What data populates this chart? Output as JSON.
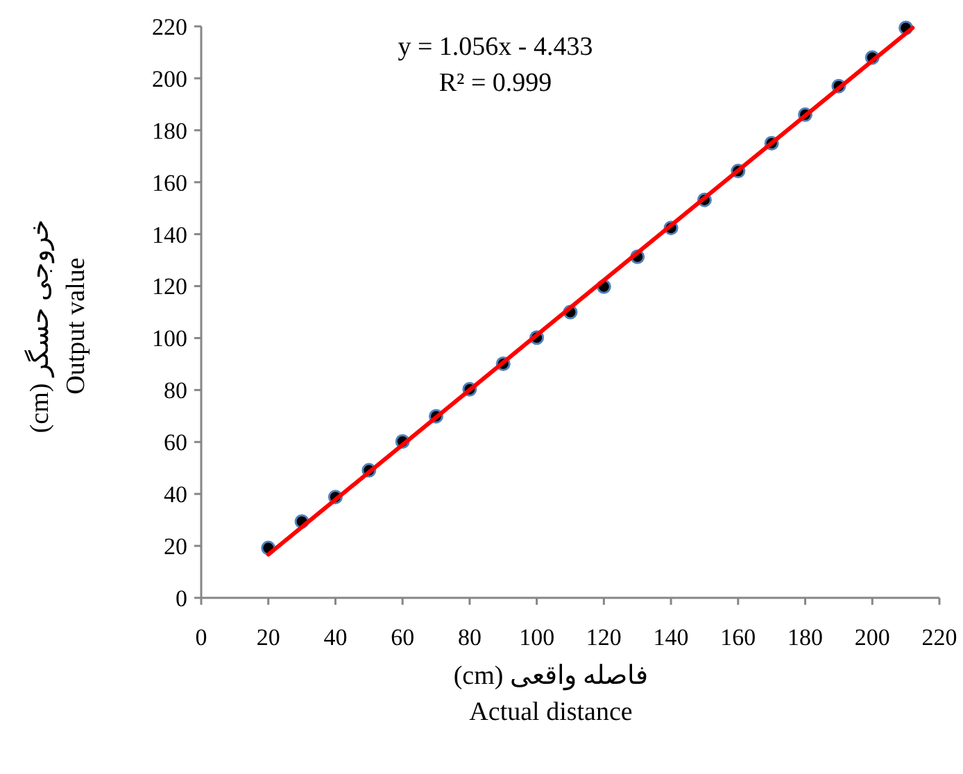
{
  "chart_data": {
    "type": "scatter",
    "xlabel": "فاصله واقعی (cm)\nActual distance",
    "ylabel": "خروجی حسگر (cm)\nOutput value",
    "annotations": [
      "y = 1.056x - 4.433",
      "R² = 0.999"
    ],
    "xlim": [
      0,
      220
    ],
    "xticks": [
      0,
      20,
      40,
      60,
      80,
      100,
      120,
      140,
      160,
      180,
      200,
      220
    ],
    "ylim": [
      0,
      220
    ],
    "yticks": [
      0,
      20,
      40,
      60,
      80,
      100,
      120,
      140,
      160,
      180,
      200,
      220
    ],
    "grid": false,
    "series": [
      {
        "color": "#000000",
        "marker": "circle",
        "x": [
          20,
          30,
          40,
          50,
          60,
          70,
          80,
          90,
          100,
          110,
          120,
          130,
          140,
          150,
          160,
          170,
          180,
          190,
          200,
          210
        ],
        "values": [
          19.2,
          29.4,
          38.8,
          49.1,
          60.2,
          69.9,
          80.3,
          90.1,
          100.2,
          110,
          119.8,
          131.3,
          142.4,
          153.2,
          164.3,
          175,
          186,
          197,
          208,
          219.4
        ]
      },
      {
        "type": "line",
        "color": "#ff0000",
        "line_style": "solid",
        "x": [
          20,
          212
        ],
        "values": [
          16.7,
          219.4
        ]
      }
    ]
  }
}
